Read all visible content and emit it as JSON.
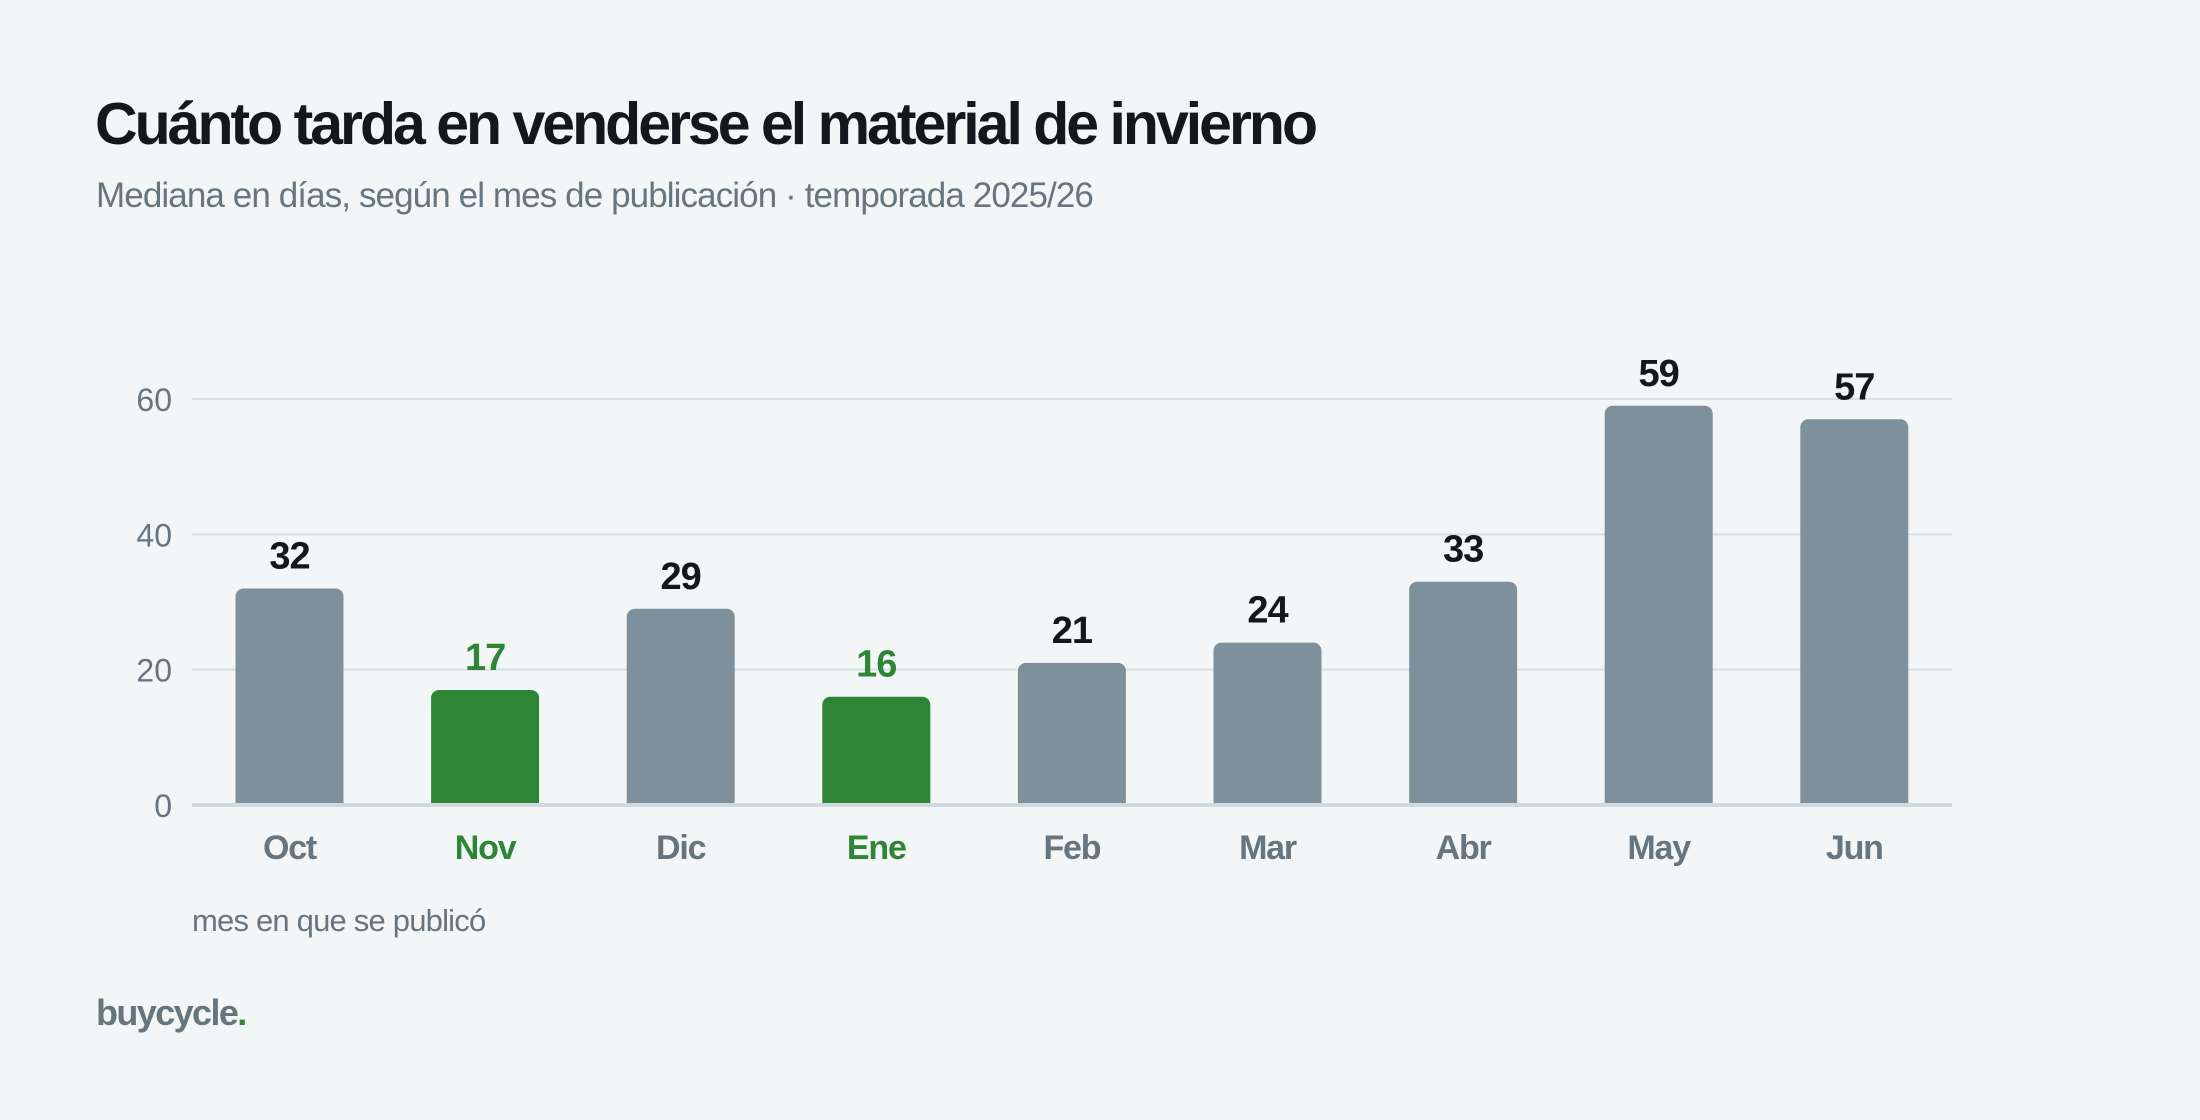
{
  "header": {
    "title": "Cuánto tarda en venderse el material de invierno",
    "subtitle": "Mediana en días, según el mes de publicación · temporada 2025/26"
  },
  "footer": {
    "logo_text": "buycycle",
    "logo_dot": "."
  },
  "colors": {
    "default_bar": "#7d909b",
    "highlight": "#2e8536",
    "value_label": "#14181c",
    "axis_text": "#67757e",
    "grid": "#d8e0e4",
    "baseline": "#cfdae0"
  },
  "chart_data": {
    "type": "bar",
    "title": "Cuánto tarda en venderse el material de invierno",
    "subtitle": "Mediana en días, según el mes de publicación · temporada 2025/26",
    "xlabel": "mes en que se publicó",
    "ylabel": "",
    "categories": [
      "Oct",
      "Nov",
      "Dic",
      "Ene",
      "Feb",
      "Mar",
      "Abr",
      "May",
      "Jun"
    ],
    "values": [
      32,
      17,
      29,
      16,
      21,
      24,
      33,
      59,
      57
    ],
    "highlighted_categories": [
      "Nov",
      "Ene"
    ],
    "ylim": [
      0,
      60
    ],
    "yticks": [
      0,
      20,
      40,
      60
    ],
    "grid": true,
    "legend": "none"
  }
}
